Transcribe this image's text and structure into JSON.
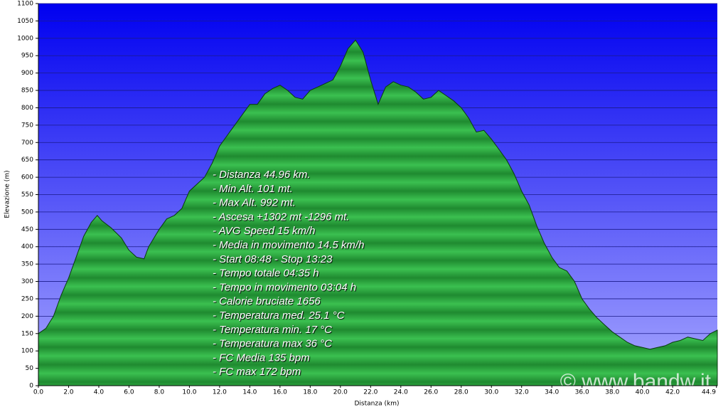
{
  "chart_data": {
    "type": "area",
    "x_label": "Distanza   (km)",
    "y_label": "Elevazione (m)",
    "color": "#2aa440",
    "grid": true,
    "x": [
      0,
      0.5,
      1,
      1.5,
      2,
      2.5,
      3,
      3.5,
      3.9,
      4.2,
      4.8,
      5.5,
      6,
      6.5,
      7,
      7.3,
      8,
      8.5,
      9,
      9.5,
      10,
      10.5,
      11,
      11.5,
      12,
      12.5,
      13,
      13.5,
      14,
      14.5,
      15,
      15.5,
      16,
      16.5,
      17,
      17.5,
      18,
      18.5,
      19,
      19.5,
      20,
      20.5,
      21,
      21.5,
      22,
      22.5,
      23,
      23.5,
      24,
      24.5,
      25,
      25.5,
      26,
      26.5,
      27,
      27.5,
      28,
      28.5,
      29,
      29.5,
      30,
      30.5,
      31,
      31.5,
      32,
      32.5,
      33,
      33.5,
      34,
      34.5,
      35,
      35.5,
      36,
      36.5,
      37,
      37.5,
      38,
      38.5,
      39,
      39.5,
      40,
      40.5,
      41,
      41.5,
      42,
      42.5,
      43,
      43.5,
      44,
      44.5,
      44.96
    ],
    "values": [
      150,
      165,
      200,
      260,
      310,
      370,
      430,
      470,
      490,
      475,
      455,
      425,
      390,
      370,
      365,
      400,
      450,
      480,
      490,
      510,
      560,
      580,
      600,
      640,
      690,
      720,
      750,
      780,
      810,
      810,
      840,
      855,
      865,
      850,
      830,
      825,
      850,
      860,
      870,
      880,
      920,
      970,
      995,
      960,
      880,
      810,
      860,
      875,
      865,
      860,
      845,
      825,
      830,
      850,
      835,
      820,
      800,
      770,
      730,
      735,
      710,
      680,
      650,
      610,
      560,
      520,
      460,
      410,
      370,
      340,
      330,
      300,
      250,
      220,
      195,
      175,
      155,
      140,
      125,
      115,
      110,
      105,
      110,
      115,
      125,
      130,
      140,
      135,
      130,
      150,
      160
    ],
    "xlim": [
      0,
      44.96
    ],
    "ylim": [
      0,
      1100
    ],
    "xticks": [
      {
        "value": 0,
        "label": "0.0"
      },
      {
        "value": 2,
        "label": "2.0"
      },
      {
        "value": 4,
        "label": "4.0"
      },
      {
        "value": 6,
        "label": "6.0"
      },
      {
        "value": 8,
        "label": "8.0"
      },
      {
        "value": 10,
        "label": "10.0"
      },
      {
        "value": 12,
        "label": "12.0"
      },
      {
        "value": 14,
        "label": "14.0"
      },
      {
        "value": 16,
        "label": "16.0"
      },
      {
        "value": 18,
        "label": "18.0"
      },
      {
        "value": 20,
        "label": "20.0"
      },
      {
        "value": 22,
        "label": "22.0"
      },
      {
        "value": 24,
        "label": "24.0"
      },
      {
        "value": 26,
        "label": "26.0"
      },
      {
        "value": 28,
        "label": "28.0"
      },
      {
        "value": 30,
        "label": "30.0"
      },
      {
        "value": 32,
        "label": "32.0"
      },
      {
        "value": 34,
        "label": "34.0"
      },
      {
        "value": 36,
        "label": "36.0"
      },
      {
        "value": 38,
        "label": "38.0"
      },
      {
        "value": 40,
        "label": "40.0"
      },
      {
        "value": 42,
        "label": "42.0"
      },
      44.9
    ],
    "yticks": [
      0,
      50,
      100,
      150,
      200,
      250,
      300,
      350,
      400,
      450,
      500,
      550,
      600,
      650,
      700,
      750,
      800,
      850,
      900,
      950,
      1000,
      1050,
      1100
    ],
    "annotations": [
      "- Distanza 44.96 km.",
      "- Min Alt. 101 mt.",
      "- Max Alt. 992 mt.",
      "- Ascesa +1302 mt -1296 mt.",
      "- AVG Speed 15 km/h",
      "- Media in movimento 14.5 km/h",
      "- Start 08:48 - Stop 13:23",
      "- Tempo totale 04:35 h",
      "- Tempo in movimento 03:04 h",
      "- Calorie bruciate 1656",
      "- Temperatura med. 25.1 °C",
      "- Temperatura min. 17 °C",
      "- Temperatura max 36 °C",
      "- FC Media 135 bpm",
      "- FC max 172 bpm"
    ],
    "watermark": "© www.bandw.it"
  }
}
